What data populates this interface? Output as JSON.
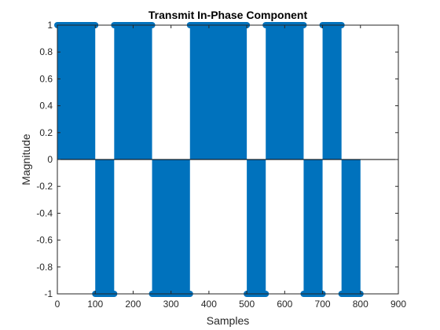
{
  "chart_data": {
    "type": "bar",
    "title": "Transmit In-Phase Component",
    "xlabel": "Samples",
    "ylabel": "Magnitude",
    "xlim": [
      0,
      900
    ],
    "ylim": [
      -1,
      1
    ],
    "xticks": [
      "0",
      "100",
      "200",
      "300",
      "400",
      "500",
      "600",
      "700",
      "800",
      "900"
    ],
    "yticks": [
      "-1",
      "-0.8",
      "-0.6",
      "-0.4",
      "-0.2",
      "0",
      "0.2",
      "0.4",
      "0.6",
      "0.8",
      "1"
    ],
    "grid": false,
    "series_color": "#0072BD",
    "series": [
      {
        "segments": [
          {
            "x_start": 0,
            "x_end": 100,
            "value": 1
          },
          {
            "x_start": 100,
            "x_end": 150,
            "value": -1
          },
          {
            "x_start": 150,
            "x_end": 250,
            "value": 1
          },
          {
            "x_start": 250,
            "x_end": 350,
            "value": -1
          },
          {
            "x_start": 350,
            "x_end": 500,
            "value": 1
          },
          {
            "x_start": 500,
            "x_end": 550,
            "value": -1
          },
          {
            "x_start": 550,
            "x_end": 650,
            "value": 1
          },
          {
            "x_start": 650,
            "x_end": 700,
            "value": -1
          },
          {
            "x_start": 700,
            "x_end": 750,
            "value": 1
          },
          {
            "x_start": 750,
            "x_end": 800,
            "value": -1
          }
        ]
      }
    ]
  }
}
